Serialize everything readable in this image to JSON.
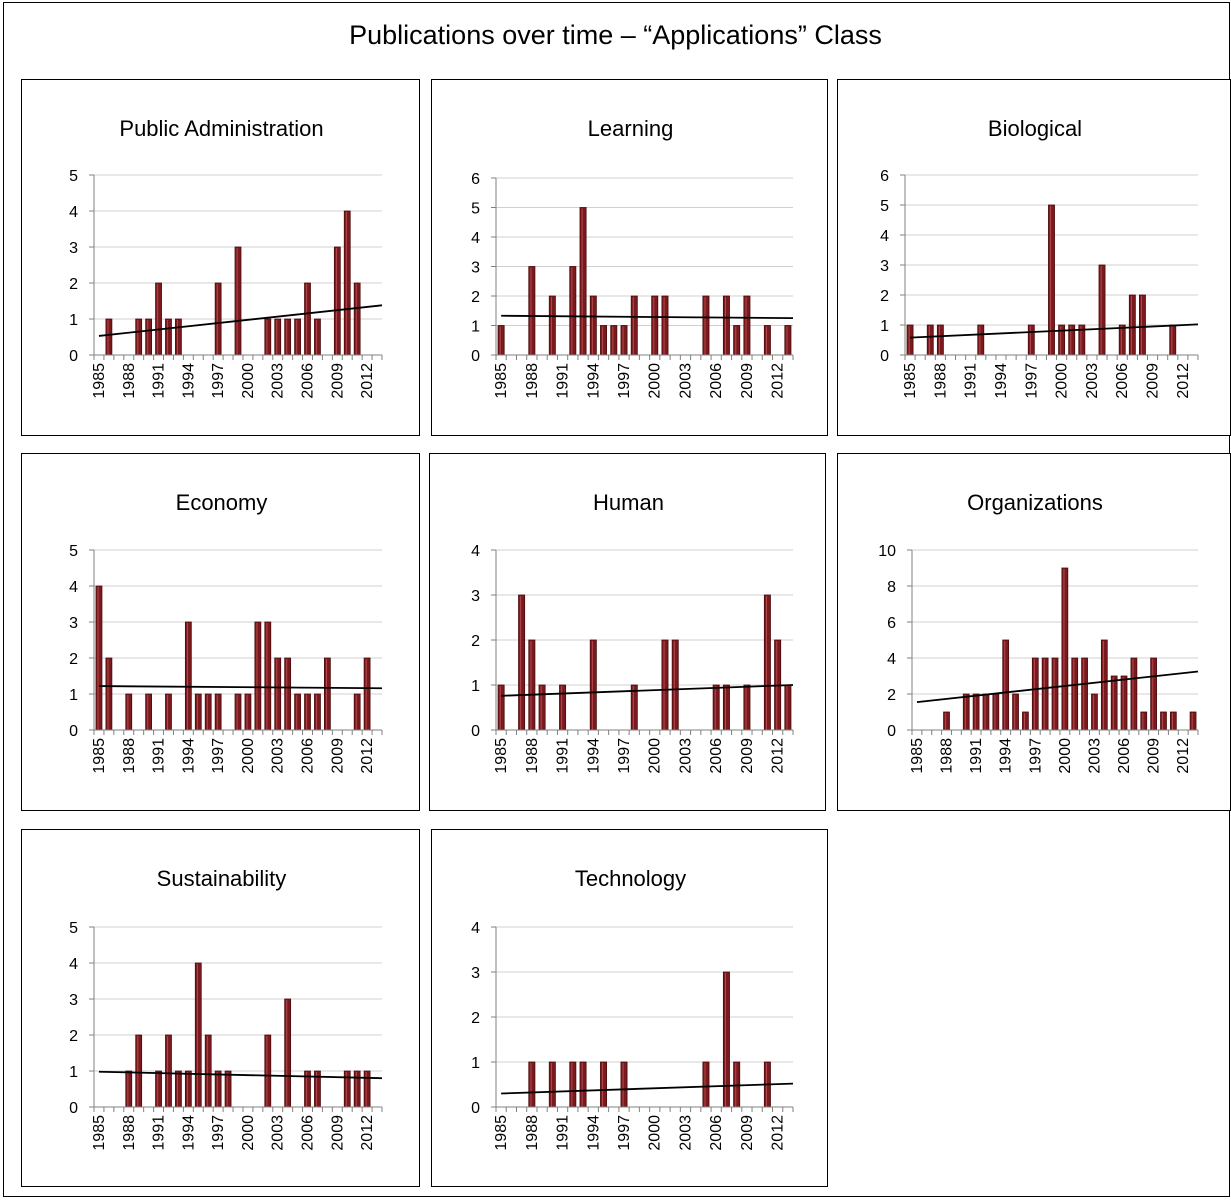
{
  "title": "Publications over time – “Applications” Class",
  "colors": {
    "bar": "#7a1a1e",
    "bar_edge": "#4a0a0c",
    "grid": "#d0d0d0",
    "axis": "#808080",
    "trend": "#000000"
  },
  "chart_data": [
    {
      "type": "bar",
      "title": "Public Administration",
      "xlabel": "",
      "ylabel": "",
      "ylim": [
        0,
        5
      ],
      "yticks": [
        0,
        1,
        2,
        3,
        4,
        5
      ],
      "years": [
        1985,
        1986,
        1987,
        1988,
        1989,
        1990,
        1991,
        1992,
        1993,
        1994,
        1995,
        1996,
        1997,
        1998,
        1999,
        2000,
        2001,
        2002,
        2003,
        2004,
        2005,
        2006,
        2007,
        2008,
        2009,
        2010,
        2011,
        2012,
        2013
      ],
      "xtick_labels": [
        "1985",
        "1988",
        "1991",
        "1994",
        "1997",
        "2000",
        "2003",
        "2006",
        "2009",
        "2012"
      ],
      "values": [
        0,
        1,
        0,
        0,
        1,
        1,
        2,
        1,
        1,
        0,
        0,
        0,
        2,
        0,
        3,
        0,
        0,
        1,
        1,
        1,
        1,
        2,
        1,
        0,
        3,
        4,
        2,
        0,
        0
      ],
      "trendline": {
        "start": 0.53,
        "end": 1.38
      },
      "grid": true,
      "legend": "none"
    },
    {
      "type": "bar",
      "title": "Learning",
      "xlabel": "",
      "ylabel": "",
      "ylim": [
        0,
        6
      ],
      "yticks": [
        0,
        1,
        2,
        3,
        4,
        5,
        6
      ],
      "years": [
        1985,
        1986,
        1987,
        1988,
        1989,
        1990,
        1991,
        1992,
        1993,
        1994,
        1995,
        1996,
        1997,
        1998,
        1999,
        2000,
        2001,
        2002,
        2003,
        2004,
        2005,
        2006,
        2007,
        2008,
        2009,
        2010,
        2011,
        2012,
        2013
      ],
      "xtick_labels": [
        "1985",
        "1988",
        "1991",
        "1994",
        "1997",
        "2000",
        "2003",
        "2006",
        "2009",
        "2012"
      ],
      "values": [
        1,
        0,
        0,
        3,
        0,
        2,
        0,
        3,
        5,
        2,
        1,
        1,
        1,
        2,
        0,
        2,
        2,
        0,
        0,
        0,
        2,
        0,
        2,
        1,
        2,
        0,
        1,
        0,
        1
      ],
      "trendline": {
        "start": 1.33,
        "end": 1.25
      },
      "grid": true,
      "legend": "none"
    },
    {
      "type": "bar",
      "title": "Biological",
      "xlabel": "",
      "ylabel": "",
      "ylim": [
        0,
        6
      ],
      "yticks": [
        0,
        1,
        2,
        3,
        4,
        5,
        6
      ],
      "years": [
        1985,
        1986,
        1987,
        1988,
        1989,
        1990,
        1991,
        1992,
        1993,
        1994,
        1995,
        1996,
        1997,
        1998,
        1999,
        2000,
        2001,
        2002,
        2003,
        2004,
        2005,
        2006,
        2007,
        2008,
        2009,
        2010,
        2011,
        2012,
        2013
      ],
      "xtick_labels": [
        "1985",
        "1988",
        "1991",
        "1994",
        "1997",
        "2000",
        "2003",
        "2006",
        "2009",
        "2012"
      ],
      "values": [
        1,
        0,
        1,
        1,
        0,
        0,
        0,
        1,
        0,
        0,
        0,
        0,
        1,
        0,
        5,
        1,
        1,
        1,
        0,
        3,
        0,
        1,
        2,
        2,
        0,
        0,
        1,
        0,
        0
      ],
      "trendline": {
        "start": 0.58,
        "end": 1.02
      },
      "grid": true,
      "legend": "none"
    },
    {
      "type": "bar",
      "title": "Economy",
      "xlabel": "",
      "ylabel": "",
      "ylim": [
        0,
        5
      ],
      "yticks": [
        0,
        1,
        2,
        3,
        4,
        5
      ],
      "years": [
        1985,
        1986,
        1987,
        1988,
        1989,
        1990,
        1991,
        1992,
        1993,
        1994,
        1995,
        1996,
        1997,
        1998,
        1999,
        2000,
        2001,
        2002,
        2003,
        2004,
        2005,
        2006,
        2007,
        2008,
        2009,
        2010,
        2011,
        2012,
        2013
      ],
      "xtick_labels": [
        "1985",
        "1988",
        "1991",
        "1994",
        "1997",
        "2000",
        "2003",
        "2006",
        "2009",
        "2012"
      ],
      "values": [
        4,
        2,
        0,
        1,
        0,
        1,
        0,
        1,
        0,
        3,
        1,
        1,
        1,
        0,
        1,
        1,
        3,
        3,
        2,
        2,
        1,
        1,
        1,
        2,
        0,
        0,
        1,
        2,
        0
      ],
      "trendline": {
        "start": 1.22,
        "end": 1.16
      },
      "grid": true,
      "legend": "none"
    },
    {
      "type": "bar",
      "title": "Human",
      "xlabel": "",
      "ylabel": "",
      "ylim": [
        0,
        4
      ],
      "yticks": [
        0,
        1,
        2,
        3,
        4
      ],
      "years": [
        1985,
        1986,
        1987,
        1988,
        1989,
        1990,
        1991,
        1992,
        1993,
        1994,
        1995,
        1996,
        1997,
        1998,
        1999,
        2000,
        2001,
        2002,
        2003,
        2004,
        2005,
        2006,
        2007,
        2008,
        2009,
        2010,
        2011,
        2012,
        2013
      ],
      "xtick_labels": [
        "1985",
        "1988",
        "1991",
        "1994",
        "1997",
        "2000",
        "2003",
        "2006",
        "2009",
        "2012"
      ],
      "values": [
        1,
        0,
        3,
        2,
        1,
        0,
        1,
        0,
        0,
        2,
        0,
        0,
        0,
        1,
        0,
        0,
        2,
        2,
        0,
        0,
        0,
        1,
        1,
        0,
        1,
        0,
        3,
        2,
        1
      ],
      "trendline": {
        "start": 0.76,
        "end": 1.0
      },
      "grid": true,
      "legend": "none"
    },
    {
      "type": "bar",
      "title": "Organizations",
      "xlabel": "",
      "ylabel": "",
      "ylim": [
        0,
        10
      ],
      "yticks": [
        0,
        2,
        4,
        6,
        8,
        10
      ],
      "years": [
        1985,
        1986,
        1987,
        1988,
        1989,
        1990,
        1991,
        1992,
        1993,
        1994,
        1995,
        1996,
        1997,
        1998,
        1999,
        2000,
        2001,
        2002,
        2003,
        2004,
        2005,
        2006,
        2007,
        2008,
        2009,
        2010,
        2011,
        2012,
        2013
      ],
      "xtick_labels": [
        "1985",
        "1988",
        "1991",
        "1994",
        "1997",
        "2000",
        "2003",
        "2006",
        "2009",
        "2012"
      ],
      "values": [
        0,
        0,
        0,
        1,
        0,
        2,
        2,
        2,
        2,
        5,
        2,
        1,
        4,
        4,
        4,
        9,
        4,
        4,
        2,
        5,
        3,
        3,
        4,
        1,
        4,
        1,
        1,
        0,
        1
      ],
      "trendline": {
        "start": 1.55,
        "end": 3.25
      },
      "grid": true,
      "legend": "none"
    },
    {
      "type": "bar",
      "title": "Sustainability",
      "xlabel": "",
      "ylabel": "",
      "ylim": [
        0,
        5
      ],
      "yticks": [
        0,
        1,
        2,
        3,
        4,
        5
      ],
      "years": [
        1985,
        1986,
        1987,
        1988,
        1989,
        1990,
        1991,
        1992,
        1993,
        1994,
        1995,
        1996,
        1997,
        1998,
        1999,
        2000,
        2001,
        2002,
        2003,
        2004,
        2005,
        2006,
        2007,
        2008,
        2009,
        2010,
        2011,
        2012,
        2013
      ],
      "xtick_labels": [
        "1985",
        "1988",
        "1991",
        "1994",
        "1997",
        "2000",
        "2003",
        "2006",
        "2009",
        "2012"
      ],
      "values": [
        0,
        0,
        0,
        1,
        2,
        0,
        1,
        2,
        1,
        1,
        4,
        2,
        1,
        1,
        0,
        0,
        0,
        2,
        0,
        3,
        0,
        1,
        1,
        0,
        0,
        1,
        1,
        1,
        0
      ],
      "trendline": {
        "start": 0.98,
        "end": 0.8
      },
      "grid": true,
      "legend": "none"
    },
    {
      "type": "bar",
      "title": "Technology",
      "xlabel": "",
      "ylabel": "",
      "ylim": [
        0,
        4
      ],
      "yticks": [
        0,
        1,
        2,
        3,
        4
      ],
      "years": [
        1985,
        1986,
        1987,
        1988,
        1989,
        1990,
        1991,
        1992,
        1993,
        1994,
        1995,
        1996,
        1997,
        1998,
        1999,
        2000,
        2001,
        2002,
        2003,
        2004,
        2005,
        2006,
        2007,
        2008,
        2009,
        2010,
        2011,
        2012,
        2013
      ],
      "xtick_labels": [
        "1985",
        "1988",
        "1991",
        "1994",
        "1997",
        "2000",
        "2003",
        "2006",
        "2009",
        "2012"
      ],
      "values": [
        0,
        0,
        0,
        1,
        0,
        1,
        0,
        1,
        1,
        0,
        1,
        0,
        1,
        0,
        0,
        0,
        0,
        0,
        0,
        0,
        1,
        0,
        3,
        1,
        0,
        0,
        1,
        0,
        0
      ],
      "trendline": {
        "start": 0.3,
        "end": 0.52
      },
      "grid": true,
      "legend": "none"
    }
  ]
}
